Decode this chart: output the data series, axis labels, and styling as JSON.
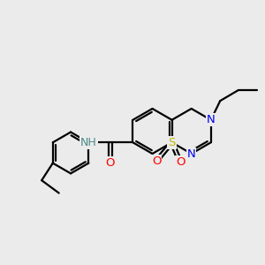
{
  "bg_color": "#ebebeb",
  "bond_color": "#000000",
  "bond_lw": 1.6,
  "atom_colors": {
    "N": "#0000ee",
    "O": "#ff0000",
    "S": "#bbbb00",
    "NH_color": "#4a8a8a"
  },
  "fs": 9.5
}
